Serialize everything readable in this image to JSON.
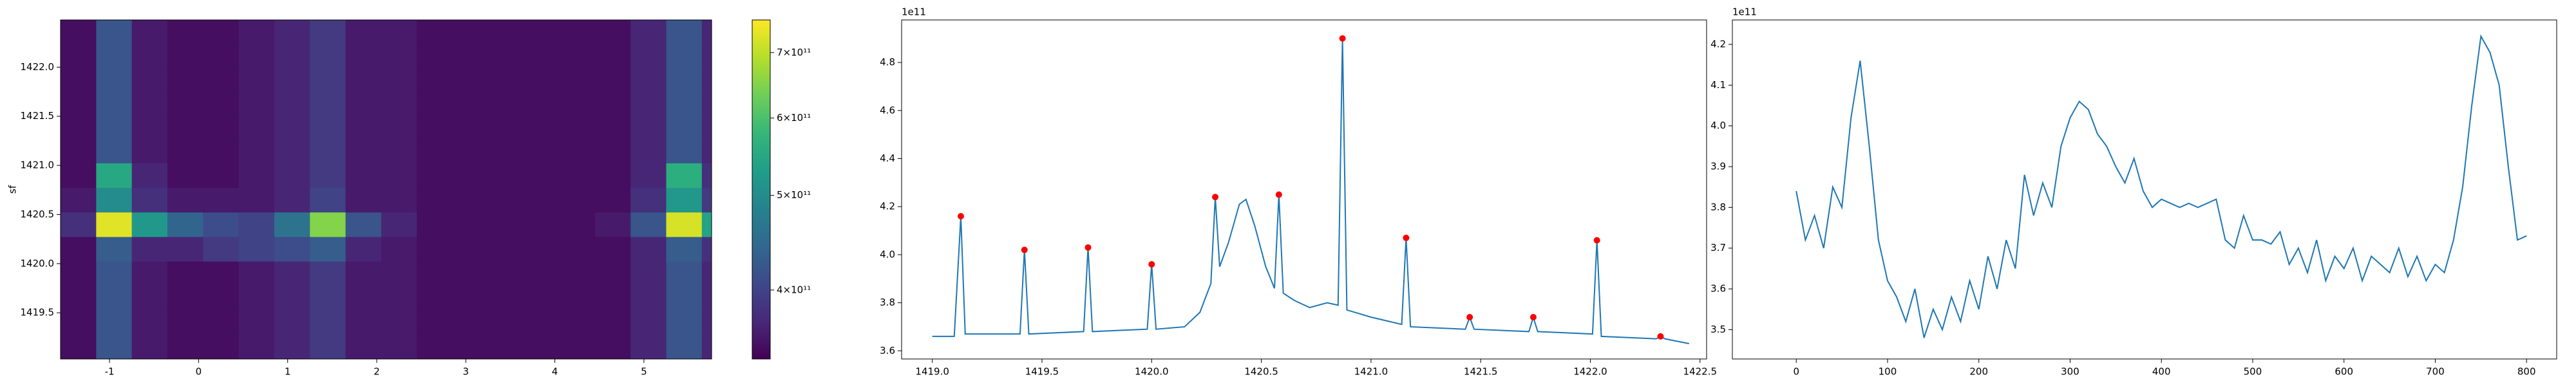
{
  "chart_data": [
    {
      "type": "heatmap",
      "ylabel": "sf",
      "x": [
        -1.35,
        -0.95,
        -0.55,
        -0.15,
        0.25,
        0.65,
        1.05,
        1.45,
        1.85,
        2.25,
        2.65,
        3.05,
        3.45,
        3.85,
        4.25,
        4.65,
        5.05,
        5.45,
        5.85
      ],
      "y": [
        1419.15,
        1419.4,
        1419.65,
        1419.9,
        1420.15,
        1420.4,
        1420.65,
        1420.9,
        1421.15,
        1421.4,
        1421.65,
        1421.9,
        1422.15,
        1422.4
      ],
      "z": [
        [
          350000000000.0,
          420000000000.0,
          360000000000.0,
          350000000000.0,
          350000000000.0,
          360000000000.0,
          370000000000.0,
          390000000000.0,
          360000000000.0,
          360000000000.0,
          350000000000.0,
          350000000000.0,
          350000000000.0,
          350000000000.0,
          350000000000.0,
          350000000000.0,
          370000000000.0,
          420000000000.0,
          370000000000.0
        ],
        [
          350000000000.0,
          420000000000.0,
          360000000000.0,
          350000000000.0,
          350000000000.0,
          360000000000.0,
          370000000000.0,
          390000000000.0,
          360000000000.0,
          360000000000.0,
          350000000000.0,
          350000000000.0,
          350000000000.0,
          350000000000.0,
          350000000000.0,
          350000000000.0,
          370000000000.0,
          420000000000.0,
          370000000000.0
        ],
        [
          350000000000.0,
          420000000000.0,
          360000000000.0,
          350000000000.0,
          350000000000.0,
          360000000000.0,
          370000000000.0,
          390000000000.0,
          360000000000.0,
          360000000000.0,
          350000000000.0,
          350000000000.0,
          350000000000.0,
          350000000000.0,
          350000000000.0,
          350000000000.0,
          370000000000.0,
          420000000000.0,
          370000000000.0
        ],
        [
          350000000000.0,
          420000000000.0,
          360000000000.0,
          350000000000.0,
          350000000000.0,
          360000000000.0,
          370000000000.0,
          390000000000.0,
          360000000000.0,
          360000000000.0,
          350000000000.0,
          350000000000.0,
          350000000000.0,
          350000000000.0,
          350000000000.0,
          350000000000.0,
          370000000000.0,
          420000000000.0,
          370000000000.0
        ],
        [
          350000000000.0,
          430000000000.0,
          370000000000.0,
          370000000000.0,
          390000000000.0,
          400000000000.0,
          410000000000.0,
          430000000000.0,
          370000000000.0,
          360000000000.0,
          350000000000.0,
          350000000000.0,
          350000000000.0,
          350000000000.0,
          350000000000.0,
          350000000000.0,
          370000000000.0,
          430000000000.0,
          380000000000.0
        ],
        [
          380000000000.0,
          730000000000.0,
          520000000000.0,
          440000000000.0,
          410000000000.0,
          400000000000.0,
          460000000000.0,
          650000000000.0,
          420000000000.0,
          370000000000.0,
          350000000000.0,
          350000000000.0,
          350000000000.0,
          350000000000.0,
          350000000000.0,
          360000000000.0,
          420000000000.0,
          720000000000.0,
          540000000000.0
        ],
        [
          360000000000.0,
          500000000000.0,
          380000000000.0,
          360000000000.0,
          360000000000.0,
          360000000000.0,
          370000000000.0,
          400000000000.0,
          360000000000.0,
          360000000000.0,
          350000000000.0,
          350000000000.0,
          350000000000.0,
          350000000000.0,
          350000000000.0,
          350000000000.0,
          380000000000.0,
          520000000000.0,
          390000000000.0
        ],
        [
          350000000000.0,
          550000000000.0,
          370000000000.0,
          350000000000.0,
          350000000000.0,
          360000000000.0,
          370000000000.0,
          390000000000.0,
          360000000000.0,
          360000000000.0,
          350000000000.0,
          350000000000.0,
          350000000000.0,
          350000000000.0,
          350000000000.0,
          350000000000.0,
          370000000000.0,
          560000000000.0,
          380000000000.0
        ],
        [
          350000000000.0,
          420000000000.0,
          360000000000.0,
          350000000000.0,
          350000000000.0,
          360000000000.0,
          370000000000.0,
          390000000000.0,
          360000000000.0,
          360000000000.0,
          350000000000.0,
          350000000000.0,
          350000000000.0,
          350000000000.0,
          350000000000.0,
          350000000000.0,
          370000000000.0,
          420000000000.0,
          370000000000.0
        ],
        [
          350000000000.0,
          420000000000.0,
          360000000000.0,
          350000000000.0,
          350000000000.0,
          360000000000.0,
          370000000000.0,
          390000000000.0,
          360000000000.0,
          360000000000.0,
          350000000000.0,
          350000000000.0,
          350000000000.0,
          350000000000.0,
          350000000000.0,
          350000000000.0,
          370000000000.0,
          420000000000.0,
          370000000000.0
        ],
        [
          350000000000.0,
          420000000000.0,
          360000000000.0,
          350000000000.0,
          350000000000.0,
          360000000000.0,
          370000000000.0,
          390000000000.0,
          360000000000.0,
          360000000000.0,
          350000000000.0,
          350000000000.0,
          350000000000.0,
          350000000000.0,
          350000000000.0,
          350000000000.0,
          370000000000.0,
          420000000000.0,
          370000000000.0
        ],
        [
          350000000000.0,
          420000000000.0,
          360000000000.0,
          350000000000.0,
          350000000000.0,
          360000000000.0,
          370000000000.0,
          390000000000.0,
          360000000000.0,
          360000000000.0,
          350000000000.0,
          350000000000.0,
          350000000000.0,
          350000000000.0,
          350000000000.0,
          350000000000.0,
          370000000000.0,
          420000000000.0,
          370000000000.0
        ],
        [
          350000000000.0,
          420000000000.0,
          360000000000.0,
          350000000000.0,
          350000000000.0,
          360000000000.0,
          370000000000.0,
          390000000000.0,
          360000000000.0,
          360000000000.0,
          350000000000.0,
          350000000000.0,
          350000000000.0,
          350000000000.0,
          350000000000.0,
          350000000000.0,
          370000000000.0,
          420000000000.0,
          370000000000.0
        ],
        [
          350000000000.0,
          420000000000.0,
          360000000000.0,
          350000000000.0,
          350000000000.0,
          360000000000.0,
          370000000000.0,
          390000000000.0,
          360000000000.0,
          360000000000.0,
          350000000000.0,
          350000000000.0,
          350000000000.0,
          350000000000.0,
          350000000000.0,
          350000000000.0,
          370000000000.0,
          420000000000.0,
          370000000000.0
        ]
      ],
      "xlim": [
        -1.55,
        5.76
      ],
      "ylim": [
        1419.03,
        1422.48
      ],
      "xticks": [
        -1,
        0,
        1,
        2,
        3,
        4,
        5
      ],
      "yticks": [
        {
          "value": 1419.5,
          "label": "1419.5"
        },
        {
          "value": 1420,
          "label": "1420.0"
        },
        {
          "value": 1420.5,
          "label": "1420.5"
        },
        {
          "value": 1421,
          "label": "1421.0"
        },
        {
          "value": 1421.5,
          "label": "1421.5"
        },
        {
          "value": 1422,
          "label": "1422.0"
        }
      ],
      "colormap": [
        "#440154",
        "#482878",
        "#3e4989",
        "#31688e",
        "#26828e",
        "#1f9e89",
        "#35b779",
        "#6ece58",
        "#b5de2b",
        "#fde725"
      ],
      "colorbar": {
        "scale": "log",
        "lim": [
          340000000000.0,
          756000000000.0
        ],
        "ticks": [
          {
            "value": 400000000000.0,
            "label": "4×10¹¹"
          },
          {
            "value": 500000000000.0,
            "label": "5×10¹¹"
          },
          {
            "value": 600000000000.0,
            "label": "6×10¹¹"
          },
          {
            "value": 700000000000.0,
            "label": "7×10¹¹"
          }
        ]
      }
    },
    {
      "type": "line",
      "offset_label": "1e11",
      "color": "#1f77b4",
      "x": [
        1419.0,
        1419.1,
        1419.13,
        1419.15,
        1419.4,
        1419.42,
        1419.44,
        1419.69,
        1419.71,
        1419.73,
        1419.98,
        1420.0,
        1420.02,
        1420.15,
        1420.22,
        1420.27,
        1420.29,
        1420.31,
        1420.35,
        1420.4,
        1420.43,
        1420.47,
        1420.52,
        1420.56,
        1420.58,
        1420.6,
        1420.65,
        1420.72,
        1420.8,
        1420.85,
        1420.87,
        1420.89,
        1421.0,
        1421.14,
        1421.16,
        1421.18,
        1421.43,
        1421.45,
        1421.47,
        1421.72,
        1421.74,
        1421.76,
        1422.01,
        1422.03,
        1422.05,
        1422.3,
        1422.32,
        1422.34,
        1422.45
      ],
      "values": [
        3.66,
        3.66,
        4.16,
        3.67,
        3.67,
        4.02,
        3.67,
        3.68,
        4.03,
        3.68,
        3.69,
        3.96,
        3.69,
        3.7,
        3.76,
        3.88,
        4.24,
        3.95,
        4.05,
        4.21,
        4.23,
        4.12,
        3.95,
        3.86,
        4.25,
        3.84,
        3.81,
        3.78,
        3.8,
        3.79,
        4.9,
        3.77,
        3.74,
        3.71,
        4.07,
        3.7,
        3.69,
        3.74,
        3.69,
        3.68,
        3.74,
        3.68,
        3.67,
        4.06,
        3.66,
        3.65,
        3.66,
        3.65,
        3.63
      ],
      "peaks": {
        "color": "#ff0000",
        "x": [
          1419.13,
          1419.42,
          1419.71,
          1420.0,
          1420.29,
          1420.58,
          1420.87,
          1421.16,
          1421.45,
          1421.74,
          1422.03,
          1422.32
        ],
        "values": [
          4.16,
          4.02,
          4.03,
          3.96,
          4.24,
          4.25,
          4.9,
          4.07,
          3.74,
          3.74,
          4.06,
          3.66
        ]
      },
      "xlim": [
        1418.86,
        1422.53
      ],
      "ylim": [
        3.566,
        4.977
      ],
      "xticks": [
        {
          "value": 1419,
          "label": "1419.0"
        },
        1419.5,
        {
          "value": 1420,
          "label": "1420.0"
        },
        1420.5,
        {
          "value": 1421,
          "label": "1421.0"
        },
        1421.5,
        {
          "value": 1422,
          "label": "1422.0"
        },
        1422.5
      ],
      "yticks": [
        3.6,
        3.8,
        {
          "value": 4,
          "label": "4.0"
        },
        4.2,
        4.4,
        4.6,
        4.8
      ]
    },
    {
      "type": "line",
      "offset_label": "1e11",
      "color": "#1f77b4",
      "x": [
        0,
        10,
        20,
        30,
        40,
        50,
        60,
        70,
        80,
        90,
        100,
        110,
        120,
        130,
        140,
        150,
        160,
        170,
        180,
        190,
        200,
        210,
        220,
        230,
        240,
        250,
        260,
        270,
        280,
        290,
        300,
        310,
        320,
        330,
        340,
        350,
        360,
        370,
        380,
        390,
        400,
        410,
        420,
        430,
        440,
        450,
        460,
        470,
        480,
        490,
        500,
        510,
        520,
        530,
        540,
        550,
        560,
        570,
        580,
        590,
        600,
        610,
        620,
        630,
        640,
        650,
        660,
        670,
        680,
        690,
        700,
        710,
        720,
        730,
        740,
        750,
        760,
        770,
        780,
        790,
        800
      ],
      "values": [
        3.84,
        3.72,
        3.78,
        3.7,
        3.85,
        3.8,
        4.02,
        4.16,
        3.95,
        3.72,
        3.62,
        3.58,
        3.52,
        3.6,
        3.48,
        3.55,
        3.5,
        3.58,
        3.52,
        3.62,
        3.55,
        3.68,
        3.6,
        3.72,
        3.65,
        3.88,
        3.78,
        3.86,
        3.8,
        3.95,
        4.02,
        4.06,
        4.04,
        3.98,
        3.95,
        3.9,
        3.86,
        3.92,
        3.84,
        3.8,
        3.82,
        3.81,
        3.8,
        3.81,
        3.8,
        3.81,
        3.82,
        3.72,
        3.7,
        3.78,
        3.72,
        3.72,
        3.71,
        3.74,
        3.66,
        3.7,
        3.64,
        3.72,
        3.62,
        3.68,
        3.65,
        3.7,
        3.62,
        3.68,
        3.66,
        3.64,
        3.7,
        3.63,
        3.68,
        3.62,
        3.66,
        3.64,
        3.72,
        3.85,
        4.05,
        4.22,
        4.18,
        4.1,
        3.9,
        3.72,
        3.73
      ],
      "xlim": [
        -70,
        833
      ],
      "ylim": [
        3.428,
        4.26
      ],
      "xticks": [
        0,
        100,
        200,
        300,
        400,
        500,
        600,
        700,
        800
      ],
      "yticks": [
        3.5,
        3.6,
        3.7,
        3.8,
        3.9,
        {
          "value": 4,
          "label": "4.0"
        },
        4.1,
        4.2
      ]
    }
  ]
}
